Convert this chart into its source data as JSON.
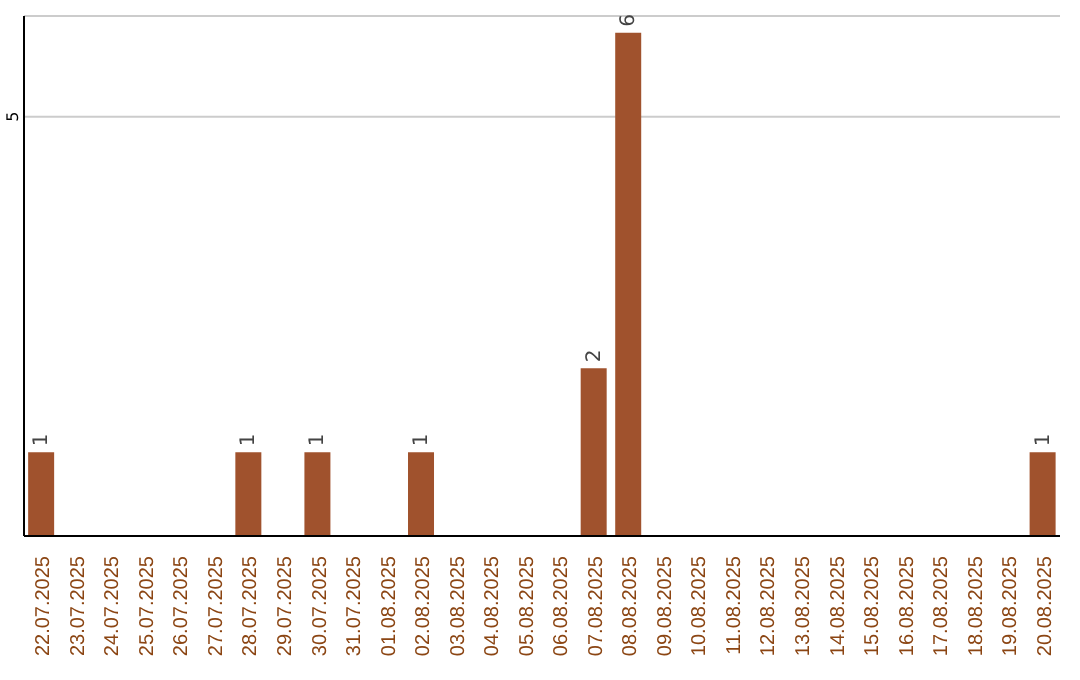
{
  "chart_data": {
    "type": "bar",
    "categories": [
      "22.07.2025",
      "23.07.2025",
      "24.07.2025",
      "25.07.2025",
      "26.07.2025",
      "27.07.2025",
      "28.07.2025",
      "29.07.2025",
      "30.07.2025",
      "31.07.2025",
      "01.08.2025",
      "02.08.2025",
      "03.08.2025",
      "04.08.2025",
      "05.08.2025",
      "06.08.2025",
      "07.08.2025",
      "08.08.2025",
      "09.08.2025",
      "10.08.2025",
      "11.08.2025",
      "12.08.2025",
      "13.08.2025",
      "14.08.2025",
      "15.08.2025",
      "16.08.2025",
      "17.08.2025",
      "18.08.2025",
      "19.08.2025",
      "20.08.2025"
    ],
    "values": [
      1,
      0,
      0,
      0,
      0,
      0,
      1,
      0,
      1,
      0,
      0,
      1,
      0,
      0,
      0,
      0,
      2,
      6,
      0,
      0,
      0,
      0,
      0,
      0,
      0,
      0,
      0,
      0,
      0,
      1
    ],
    "value_labels": [
      "1",
      null,
      null,
      null,
      null,
      null,
      "1",
      null,
      "1",
      null,
      null,
      "1",
      null,
      null,
      null,
      null,
      "2",
      "6",
      null,
      null,
      null,
      null,
      null,
      null,
      null,
      null,
      null,
      null,
      null,
      "1"
    ],
    "color": "#a0522d",
    "ylim": [
      0,
      6.2
    ],
    "yticks": [
      5
    ],
    "grid": "y"
  }
}
